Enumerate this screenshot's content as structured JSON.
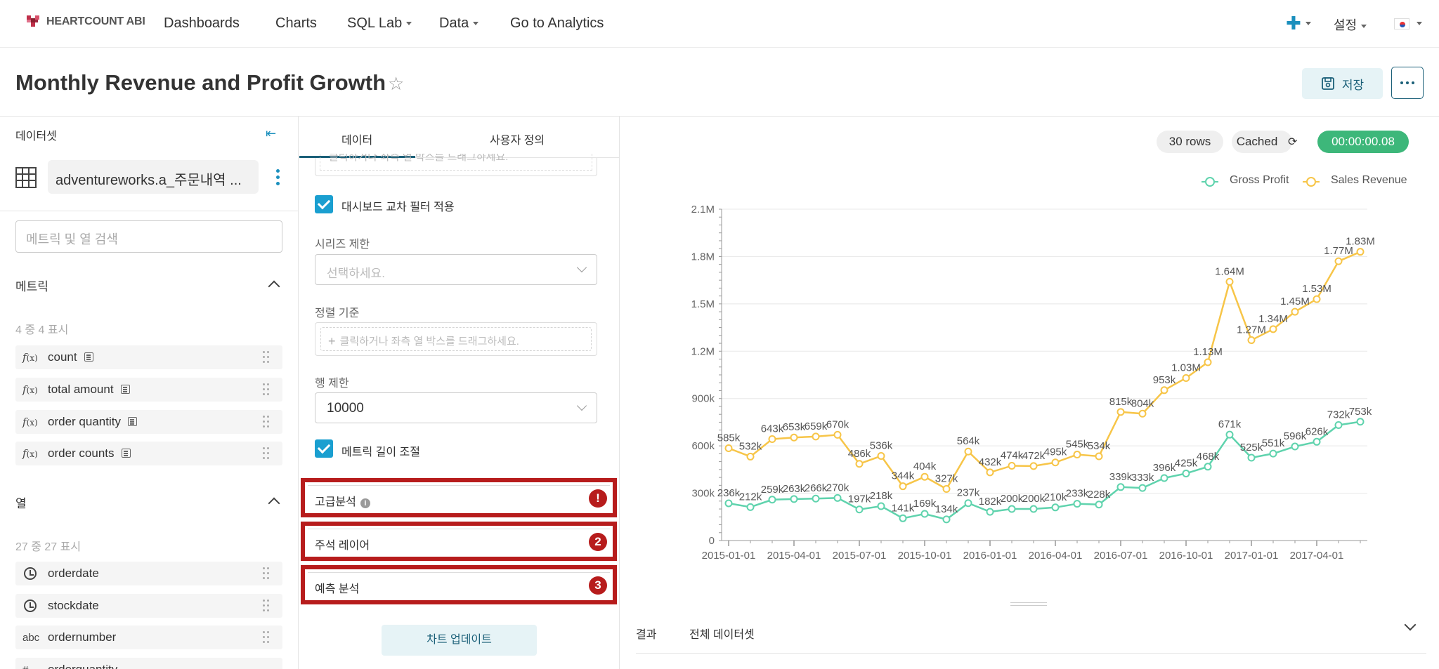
{
  "app": {
    "logo_text": "HEARTCOUNT ABI"
  },
  "nav": {
    "items": [
      "Dashboards",
      "Charts",
      "SQL Lab",
      "Data",
      "Go to Analytics"
    ],
    "settings_label": "설정"
  },
  "header": {
    "title": "Monthly Revenue and Profit Growth",
    "save_label": "저장"
  },
  "dataset_panel": {
    "label": "데이터셋",
    "dataset_name": "adventureworks.a_주문내역 ...",
    "search_placeholder": "메트릭 및 열 검색",
    "metrics_header": "메트릭",
    "metrics_count": "4 중 4 표시",
    "metrics": [
      "count",
      "total amount",
      "order quantity",
      "order counts"
    ],
    "columns_header": "열",
    "columns_count": "27 중 27 표시",
    "columns": [
      {
        "type": "time",
        "name": "orderdate"
      },
      {
        "type": "time",
        "name": "stockdate"
      },
      {
        "type": "abc",
        "name": "ordernumber"
      },
      {
        "type": "#",
        "name": "orderquantity"
      }
    ],
    "fx_label": "f(x)"
  },
  "config_panel": {
    "tab_data": "데이터",
    "tab_custom": "사용자 정의",
    "drop_placeholder": "클릭하거나 좌측 열 박스를 드래그하세요.",
    "cross_filter_label": "대시보드 교차 필터 적용",
    "series_limit_label": "시리즈 제한",
    "series_limit_placeholder": "선택하세요.",
    "sort_by_label": "정렬 기준",
    "row_limit_label": "행 제한",
    "row_limit_value": "10000",
    "truncate_metric_label": "메트릭 길이 조절",
    "advanced_analytics": "고급분석",
    "annotation_layers": "주석 레이어",
    "forecast": "예측 분석",
    "badges": [
      "!",
      "2",
      "3"
    ],
    "update_button": "차트 업데이트"
  },
  "result_panel": {
    "rows_pill": "30 rows",
    "cached_pill": "Cached",
    "time_pill": "00:00:00.08",
    "results_tab": "결과",
    "full_dataset_tab": "전체 데이터셋"
  },
  "colors": {
    "gross_profit": "#5fd3ad",
    "sales_revenue": "#f7c548",
    "accent": "#1a8fbd",
    "highlight": "#b71c1c"
  },
  "chart_data": {
    "type": "line",
    "x": [
      "2015-01-01",
      "2015-02-01",
      "2015-03-01",
      "2015-04-01",
      "2015-05-01",
      "2015-06-01",
      "2015-07-01",
      "2015-08-01",
      "2015-09-01",
      "2015-10-01",
      "2015-11-01",
      "2015-12-01",
      "2016-01-01",
      "2016-02-01",
      "2016-03-01",
      "2016-04-01",
      "2016-05-01",
      "2016-06-01",
      "2016-07-01",
      "2016-08-01",
      "2016-09-01",
      "2016-10-01",
      "2016-11-01",
      "2016-12-01",
      "2017-01-01",
      "2017-02-01",
      "2017-03-01",
      "2017-04-01",
      "2017-05-01",
      "2017-06-01"
    ],
    "x_ticks": [
      "2015-01-01",
      "2015-04-01",
      "2015-07-01",
      "2015-10-01",
      "2016-01-01",
      "2016-04-01",
      "2016-07-01",
      "2016-10-01",
      "2017-01-01",
      "2017-04-01"
    ],
    "y_ticks": [
      "0",
      "300k",
      "600k",
      "900k",
      "1.2M",
      "1.5M",
      "1.8M",
      "2.1M"
    ],
    "ylim": [
      0,
      2100000
    ],
    "series": [
      {
        "name": "Gross Profit",
        "color": "#5fd3ad",
        "values": [
          236000,
          212000,
          259000,
          263000,
          266000,
          270000,
          197000,
          218000,
          141000,
          169000,
          134000,
          237000,
          182000,
          200000,
          200000,
          210000,
          233000,
          228000,
          339000,
          333000,
          396000,
          425000,
          468000,
          671000,
          525000,
          551000,
          596000,
          626000,
          732000,
          753000
        ],
        "labels": [
          "236k",
          "212k",
          "259k",
          "263k",
          "266k",
          "270k",
          "197k",
          "218k",
          "141k",
          "169k",
          "134k",
          "237k",
          "182k",
          "200k",
          "200k",
          "210k",
          "233k",
          "228k",
          "339k",
          "333k",
          "396k",
          "425k",
          "468k",
          "671k",
          "525k",
          "551k",
          "596k",
          "626k",
          "732k",
          "753k"
        ]
      },
      {
        "name": "Sales Revenue",
        "color": "#f7c548",
        "values": [
          585000,
          532000,
          643000,
          653000,
          659000,
          670000,
          486000,
          536000,
          344000,
          404000,
          327000,
          564000,
          432000,
          474000,
          472000,
          495000,
          545000,
          534000,
          815000,
          804000,
          953000,
          1030000,
          1130000,
          1640000,
          1270000,
          1340000,
          1450000,
          1530000,
          1770000,
          1830000
        ],
        "labels": [
          "585k",
          "532k",
          "643k",
          "653k",
          "659k",
          "670k",
          "486k",
          "536k",
          "344k",
          "404k",
          "327k",
          "564k",
          "432k",
          "474k",
          "472k",
          "495k",
          "545k",
          "534k",
          "815k",
          "804k",
          "953k",
          "1.03M",
          "1.13M",
          "1.64M",
          "1.27M",
          "1.34M",
          "1.45M",
          "1.53M",
          "1.77M",
          "1.83M"
        ]
      }
    ],
    "legend_position": "top-right",
    "grid": "horizontal"
  }
}
